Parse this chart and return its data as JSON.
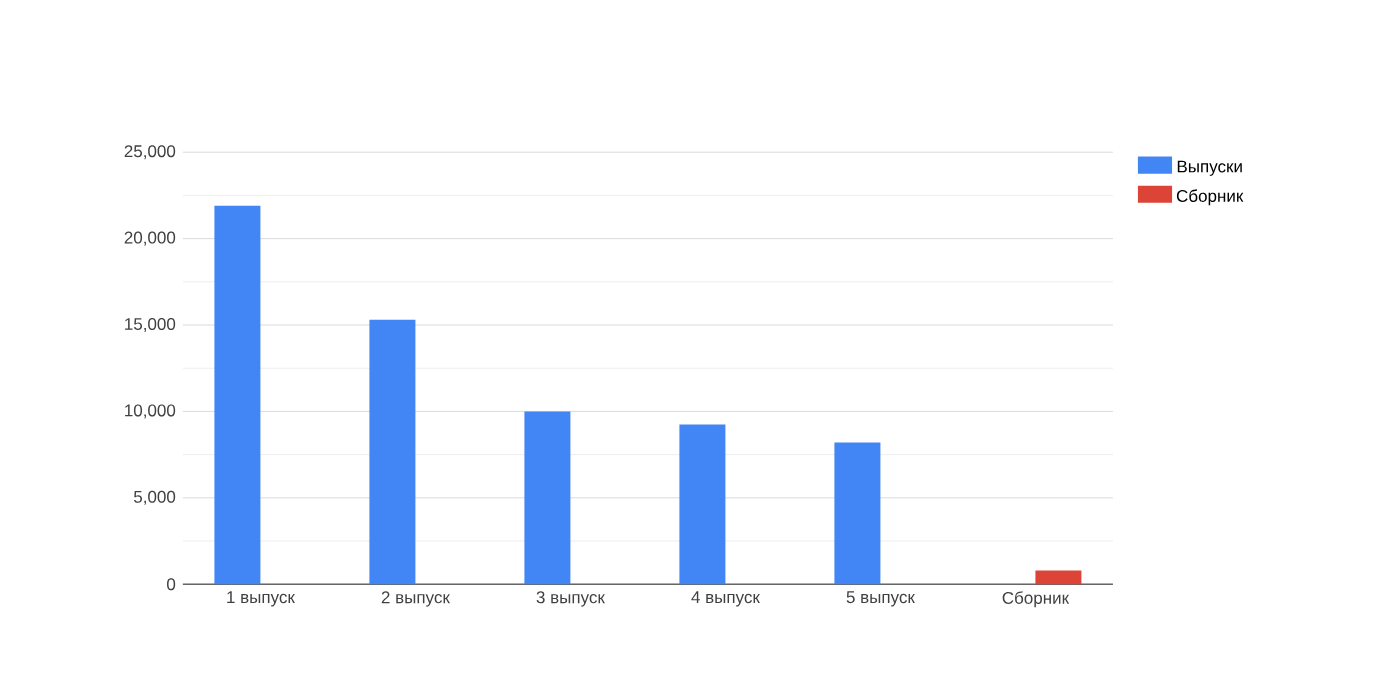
{
  "chart_data": {
    "type": "bar",
    "categories": [
      "1 выпуск",
      "2 выпуск",
      "3 выпуск",
      "4 выпуск",
      "5 выпуск",
      "Сборник"
    ],
    "series": [
      {
        "name": "Выпуски",
        "color": "#4285f4",
        "values": [
          21900,
          15300,
          10000,
          9250,
          8200,
          null
        ]
      },
      {
        "name": "Сборник",
        "color": "#db4437",
        "values": [
          null,
          null,
          null,
          null,
          null,
          800
        ]
      }
    ],
    "ylim": [
      0,
      25000
    ],
    "yticks": [
      {
        "value": 0,
        "label": "0"
      },
      {
        "value": 5000,
        "label": "5,000"
      },
      {
        "value": 10000,
        "label": "10,000"
      },
      {
        "value": 15000,
        "label": "15,000"
      },
      {
        "value": 20000,
        "label": "20,000"
      },
      {
        "value": 25000,
        "label": "25,000"
      }
    ],
    "grid": true,
    "legend": "right"
  }
}
